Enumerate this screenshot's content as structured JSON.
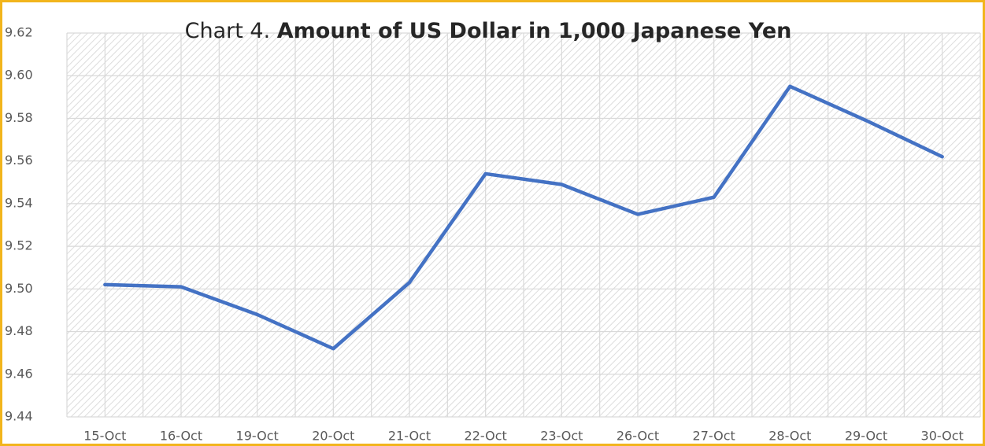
{
  "chart_data": {
    "type": "line",
    "title": [
      "Chart 4.",
      "Amount of US Dollar in 1,000 Japanese Yen"
    ],
    "categories": [
      "15-Oct",
      "16-Oct",
      "19-Oct",
      "20-Oct",
      "21-Oct",
      "22-Oct",
      "23-Oct",
      "26-Oct",
      "27-Oct",
      "28-Oct",
      "29-Oct",
      "30-Oct"
    ],
    "series": [
      {
        "color": "#4472c4",
        "values": [
          9.502,
          9.501,
          9.488,
          9.472,
          9.503,
          9.554,
          9.549,
          9.535,
          9.543,
          9.595,
          9.579,
          9.562
        ]
      }
    ],
    "ylim": [
      9.44,
      9.62
    ],
    "yticks": [
      9.44,
      9.46,
      9.48,
      {
        "value": 9.5,
        "label": "9.50"
      },
      9.52,
      9.54,
      9.56,
      9.58,
      {
        "value": 9.6,
        "label": "9.60"
      },
      9.62
    ],
    "grid": true
  }
}
